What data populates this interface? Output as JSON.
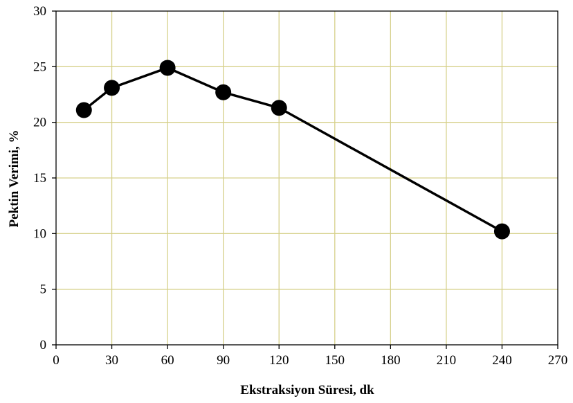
{
  "chart_data": {
    "type": "line",
    "title": "",
    "xlabel": "Ekstraksiyon Süresi, dk",
    "ylabel": "Pektin Verimi, %",
    "xlim": [
      0,
      270
    ],
    "ylim": [
      0,
      30
    ],
    "x_ticks": [
      0,
      30,
      60,
      90,
      120,
      150,
      180,
      210,
      240,
      270
    ],
    "y_ticks": [
      0,
      5,
      10,
      15,
      20,
      25,
      30
    ],
    "grid": true,
    "legend": "none",
    "series": [
      {
        "x": [
          15,
          30,
          60,
          90,
          120,
          240
        ],
        "y": [
          21.1,
          23.1,
          24.9,
          22.7,
          21.3,
          10.2
        ],
        "marker": "circle",
        "color": "#000000"
      }
    ],
    "colors": {
      "grid": "#d6d08a",
      "axis": "#000000",
      "series": "#000000"
    }
  }
}
